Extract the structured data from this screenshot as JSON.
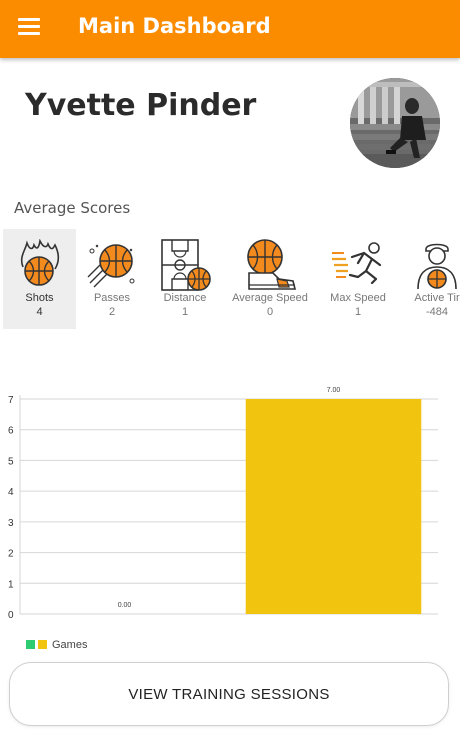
{
  "appbar": {
    "title": "Main Dashboard",
    "color": "#fb8c00"
  },
  "profile": {
    "name": "Yvette Pinder"
  },
  "average_scores": {
    "title": "Average Scores",
    "items": [
      {
        "label": "Shots",
        "value": "4",
        "icon": "basketball-fire-icon",
        "selected": true
      },
      {
        "label": "Passes",
        "value": "2",
        "icon": "basketball-pass-icon",
        "selected": false
      },
      {
        "label": "Distance",
        "value": "1",
        "icon": "basketball-court-icon",
        "selected": false
      },
      {
        "label": "Average Speed",
        "value": "0",
        "icon": "basketball-shoe-icon",
        "selected": false
      },
      {
        "label": "Max Speed",
        "value": "1",
        "icon": "running-player-icon",
        "selected": false
      },
      {
        "label": "Active Tir",
        "value": "-484",
        "icon": "player-with-ball-icon",
        "selected": false
      }
    ]
  },
  "chart_data": {
    "type": "bar",
    "categories": [
      "",
      ""
    ],
    "values": [
      0.0,
      7.0
    ],
    "data_labels": [
      "0.00",
      "7.00"
    ],
    "bar_color": "#f1c40f",
    "ylim": [
      0,
      7
    ],
    "yticks": [
      "0",
      "1",
      "2",
      "3",
      "4",
      "5",
      "6",
      "7"
    ],
    "grid": true,
    "legend": {
      "position": "bottom-left",
      "entries": [
        {
          "name": "Games",
          "colors": [
            "#2ecc71",
            "#f1c40f"
          ]
        }
      ]
    }
  },
  "actions": {
    "view_sessions": "VIEW TRAINING SESSIONS"
  }
}
